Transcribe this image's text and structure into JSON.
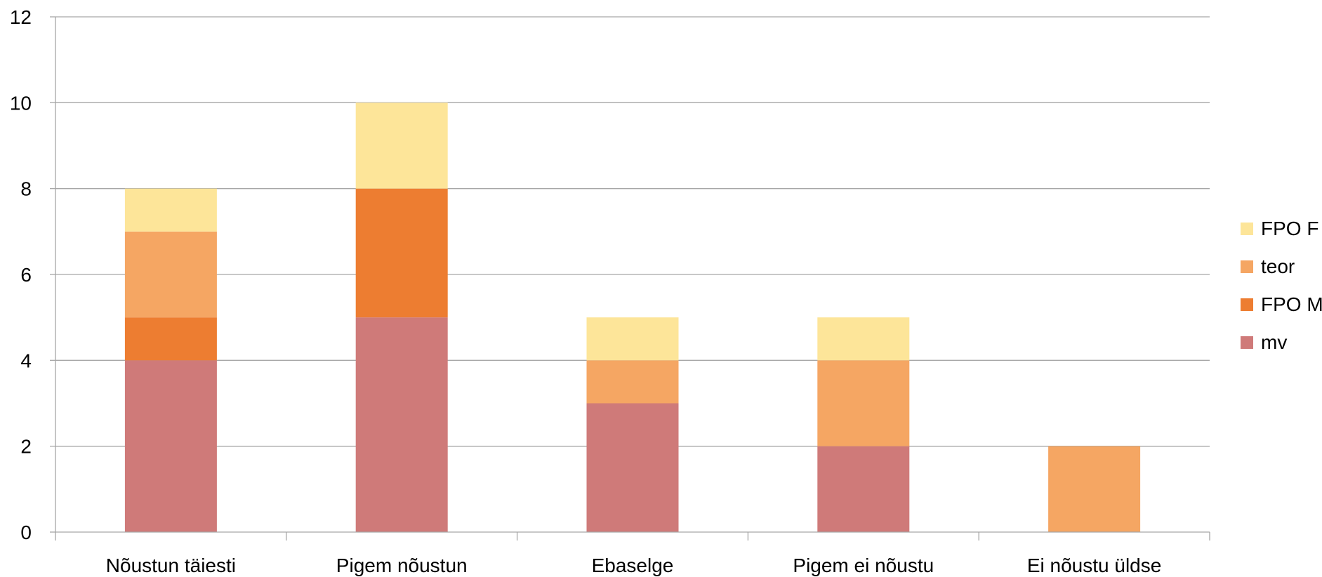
{
  "chart_data": {
    "type": "bar",
    "stacked": true,
    "title": "",
    "xlabel": "",
    "ylabel": "",
    "categories": [
      "Nõustun täiesti",
      "Pigem nõustun",
      "Ebaselge",
      "Pigem ei nõustu",
      "Ei nõustu üldse"
    ],
    "ylim": [
      0,
      12
    ],
    "yticks": [
      0,
      2,
      4,
      6,
      8,
      10,
      12
    ],
    "grid": true,
    "legend_position": "right",
    "series": [
      {
        "name": "mv",
        "color": "#cf7a79",
        "values": [
          4,
          5,
          3,
          2,
          0
        ]
      },
      {
        "name": "FPO M",
        "color": "#ed7d31",
        "values": [
          1,
          3,
          0,
          0,
          0
        ]
      },
      {
        "name": "teor",
        "color": "#f5a663",
        "values": [
          2,
          0,
          1,
          2,
          2
        ]
      },
      {
        "name": "FPO F",
        "color": "#fde599",
        "values": [
          1,
          2,
          1,
          1,
          0
        ]
      }
    ]
  }
}
